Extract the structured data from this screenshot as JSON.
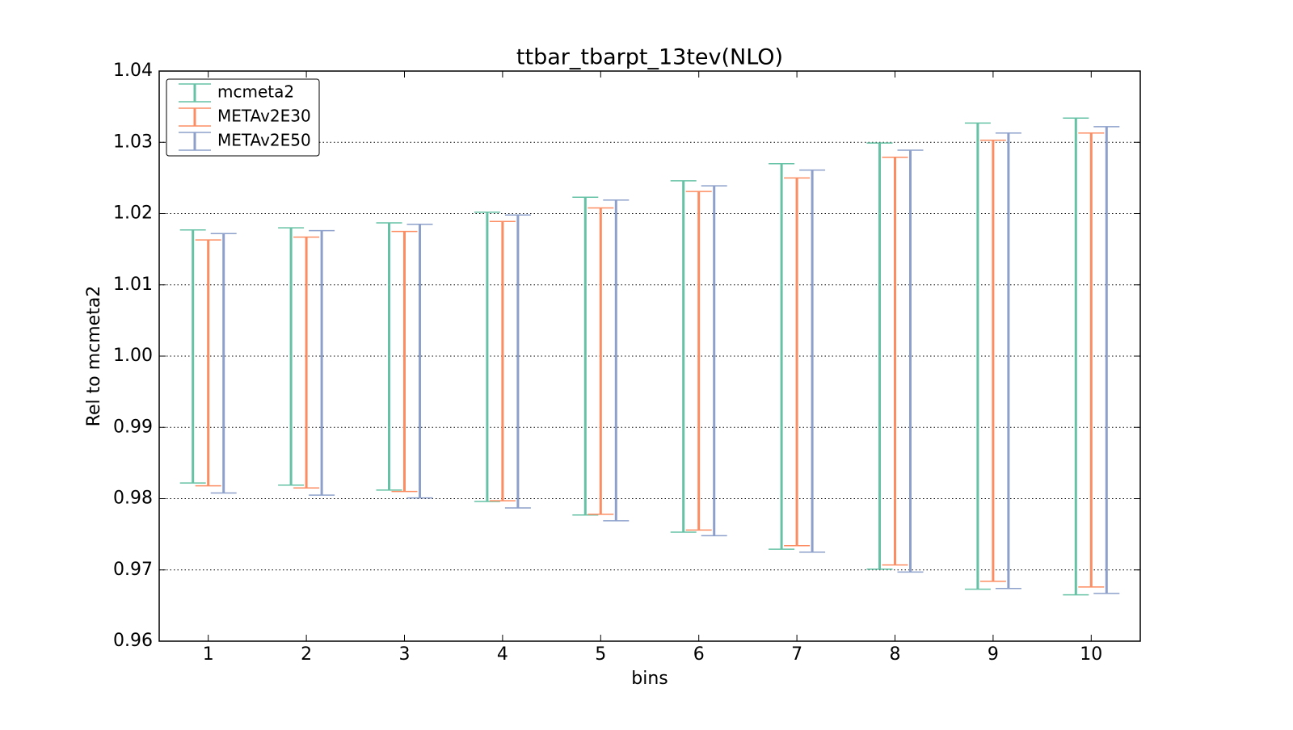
{
  "chart_data": {
    "type": "errorbar",
    "title": "ttbar_tbarpt_13tev(NLO)",
    "xlabel": "bins",
    "ylabel": "Rel to mcmeta2",
    "x": [
      1,
      2,
      3,
      4,
      5,
      6,
      7,
      8,
      9,
      10
    ],
    "xlim": [
      0.5,
      10.5
    ],
    "xticks": [
      1,
      2,
      3,
      4,
      5,
      6,
      7,
      8,
      9,
      10
    ],
    "ylim": [
      0.96,
      1.04
    ],
    "yticks": [
      0.96,
      0.97,
      0.98,
      0.99,
      {
        "value": 1.0,
        "label": "1.00"
      },
      1.01,
      1.02,
      1.03,
      1.04
    ],
    "grid": true,
    "legend": "upper left",
    "series": [
      {
        "name": "mcmeta2",
        "color": "#66c2a5",
        "low": [
          0.9822,
          0.9819,
          0.9812,
          0.9796,
          0.9777,
          0.9753,
          0.9729,
          0.9701,
          0.9673,
          0.9665
        ],
        "high": [
          1.0177,
          1.018,
          1.0187,
          1.0202,
          1.0223,
          1.0246,
          1.027,
          1.0299,
          1.0327,
          1.0334
        ]
      },
      {
        "name": "METAv2E30",
        "color": "#fc8d62",
        "low": [
          0.9818,
          0.9815,
          0.981,
          0.9797,
          0.9778,
          0.9756,
          0.9734,
          0.9707,
          0.9684,
          0.9676
        ],
        "high": [
          1.0163,
          1.0167,
          1.0175,
          1.0189,
          1.0208,
          1.0231,
          1.025,
          1.0279,
          1.0303,
          1.0313
        ]
      },
      {
        "name": "METAv2E50",
        "color": "#8da0cb",
        "low": [
          0.9808,
          0.9805,
          0.9801,
          0.9787,
          0.9769,
          0.9748,
          0.9725,
          0.9697,
          0.9674,
          0.9667
        ],
        "high": [
          1.0172,
          1.0176,
          1.0185,
          1.0198,
          1.0219,
          1.0239,
          1.0261,
          1.0289,
          1.0313,
          1.0322
        ]
      }
    ]
  }
}
